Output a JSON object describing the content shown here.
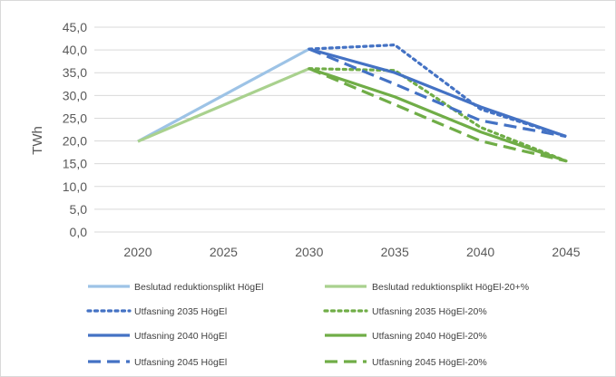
{
  "chart_data": {
    "type": "line",
    "title": "",
    "xlabel": "",
    "ylabel": "TWh",
    "x": [
      2020,
      2025,
      2030,
      2035,
      2040,
      2045
    ],
    "x_tick_labels": [
      "2020",
      "2025",
      "2030",
      "2035",
      "2040",
      "2045"
    ],
    "y_tick_labels": [
      "0,0",
      "5,0",
      "10,0",
      "15,0",
      "20,0",
      "25,0",
      "30,0",
      "35,0",
      "40,0",
      "45,0"
    ],
    "ylim": [
      0,
      45
    ],
    "grid": "horizontal",
    "legend_position": "bottom",
    "series": [
      {
        "name": "Beslutad reduktionsplikt HögEl",
        "color": "#9DC3E6",
        "style": "solid",
        "values": [
          19.9,
          null,
          40.2,
          null,
          null,
          null
        ]
      },
      {
        "name": "Beslutad reduktionsplikt HögEl-20+%",
        "color": "#A9D18E",
        "style": "solid",
        "values": [
          19.9,
          null,
          35.9,
          null,
          null,
          null
        ]
      },
      {
        "name": "Utfasning 2035 HögEl",
        "color": "#4472C4",
        "style": "dotted",
        "values": [
          null,
          null,
          40.2,
          41.1,
          27.0,
          21.0
        ]
      },
      {
        "name": "Utfasning 2035 HögEl-20%",
        "color": "#70AD47",
        "style": "dotted",
        "values": [
          null,
          null,
          35.9,
          35.5,
          23.0,
          15.6
        ]
      },
      {
        "name": "Utfasning 2040 HögEl",
        "color": "#4472C4",
        "style": "solid",
        "values": [
          null,
          null,
          40.2,
          35.0,
          27.5,
          21.0
        ]
      },
      {
        "name": "Utfasning 2040 HögEl-20%",
        "color": "#70AD47",
        "style": "solid",
        "values": [
          null,
          null,
          35.9,
          29.7,
          22.0,
          15.6
        ]
      },
      {
        "name": "Utfasning 2045 HögEl",
        "color": "#4472C4",
        "style": "dashed",
        "values": [
          null,
          null,
          40.2,
          32.5,
          24.5,
          21.0
        ]
      },
      {
        "name": "Utfasning 2045 HögEl-20%",
        "color": "#70AD47",
        "style": "dashed",
        "values": [
          null,
          null,
          35.9,
          28.0,
          20.0,
          15.6
        ]
      }
    ]
  }
}
